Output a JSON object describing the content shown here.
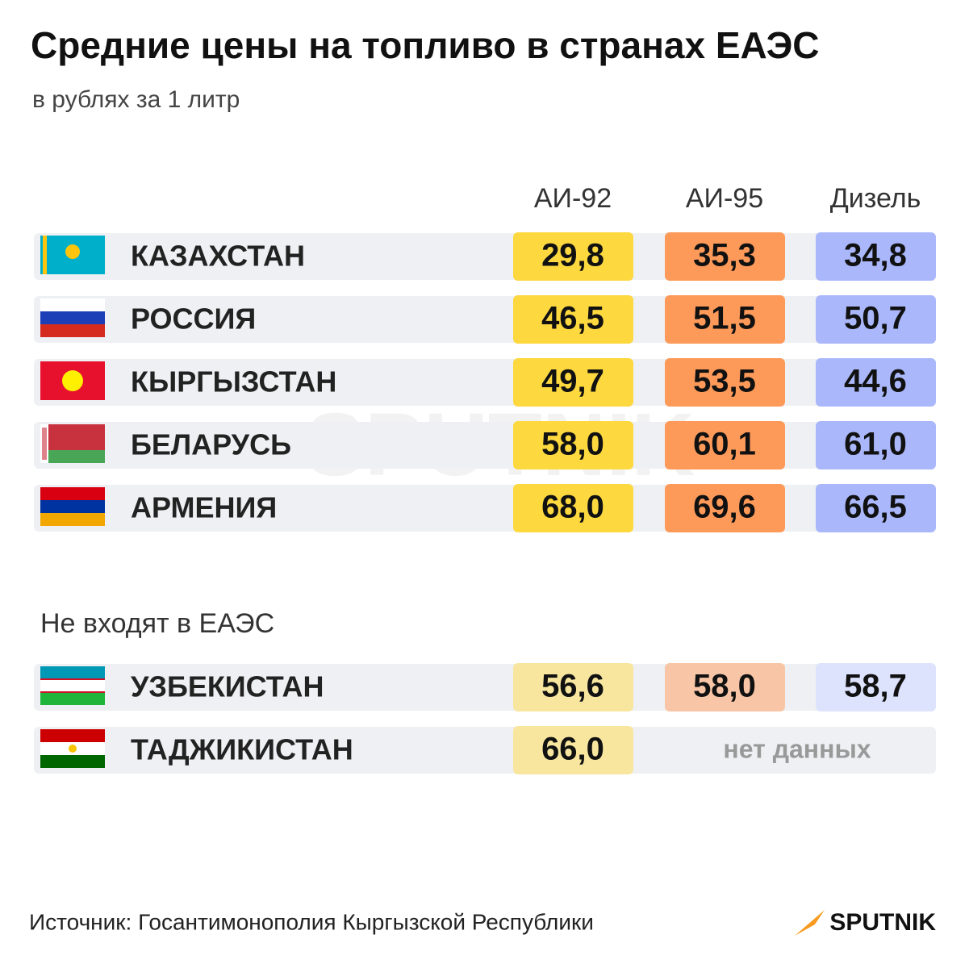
{
  "header": {
    "title": "Средние цены на топливо в странах ЕАЭС",
    "subtitle": "в рублях за 1 литр"
  },
  "table": {
    "columns": [
      "АИ-92",
      "АИ-95",
      "Дизель"
    ],
    "rows": [
      {
        "country": "КАЗАХСТАН",
        "values": [
          "29,8",
          "35,3",
          "34,8"
        ]
      },
      {
        "country": "РОССИЯ",
        "values": [
          "46,5",
          "51,5",
          "50,7"
        ]
      },
      {
        "country": "КЫРГЫЗСТАН",
        "values": [
          "49,7",
          "53,5",
          "44,6"
        ]
      },
      {
        "country": "БЕЛАРУСЬ",
        "values": [
          "58,0",
          "60,1",
          "61,0"
        ]
      },
      {
        "country": "АРМЕНИЯ",
        "values": [
          "68,0",
          "69,6",
          "66,5"
        ]
      }
    ]
  },
  "other_table": {
    "title": "Не входят в ЕАЭС",
    "rows": [
      {
        "country": "УЗБЕКИСТАН",
        "values": [
          "56,6",
          "58,0",
          "58,7"
        ]
      },
      {
        "country": "ТАДЖИКИСТАН",
        "values": [
          "66,0"
        ],
        "note": "нет данных"
      }
    ]
  },
  "watermark": "SPUTNIK",
  "footer": {
    "source": "Источник: Госантимонополия Кыргызской Республики",
    "logo": "SPUTNIK"
  }
}
